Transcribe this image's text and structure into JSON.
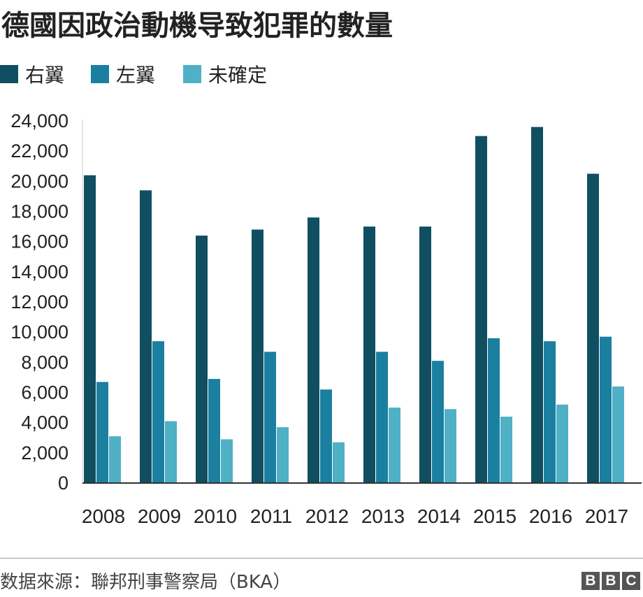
{
  "title": "德國因政治動機导致犯罪的數量",
  "source": "数据來源：聯邦刑事警察局（BKA）",
  "logo_text": "BBC",
  "colors": {
    "right_wing": "#0f4f61",
    "left_wing": "#1b7fa0",
    "undetermined": "#4fb0c6",
    "axis": "#333333",
    "text": "#222222"
  },
  "chart_data": {
    "type": "bar",
    "title": "德國因政治動機导致犯罪的數量",
    "xlabel": "",
    "ylabel": "",
    "categories": [
      "2008",
      "2009",
      "2010",
      "2011",
      "2012",
      "2013",
      "2014",
      "2015",
      "2016",
      "2017"
    ],
    "series": [
      {
        "name": "右翼",
        "values": [
          20400,
          19400,
          16400,
          16800,
          17600,
          17000,
          17000,
          23000,
          23600,
          20500
        ]
      },
      {
        "name": "左翼",
        "values": [
          6700,
          9400,
          6900,
          8700,
          6200,
          8700,
          8100,
          9600,
          9400,
          9700
        ]
      },
      {
        "name": "未確定",
        "values": [
          3100,
          4100,
          2900,
          3700,
          2700,
          5000,
          4900,
          4400,
          5200,
          6400
        ]
      }
    ],
    "ylim": [
      0,
      24000
    ],
    "yticks": [
      0,
      2000,
      4000,
      6000,
      8000,
      10000,
      12000,
      14000,
      16000,
      18000,
      20000,
      22000,
      24000
    ],
    "ytick_labels": [
      "0",
      "2,000",
      "4,000",
      "6,000",
      "8,000",
      "10,000",
      "12,000",
      "14,000",
      "16,000",
      "18,000",
      "20,000",
      "22,000",
      "24,000"
    ],
    "grid": false,
    "legend_position": "top-left"
  }
}
